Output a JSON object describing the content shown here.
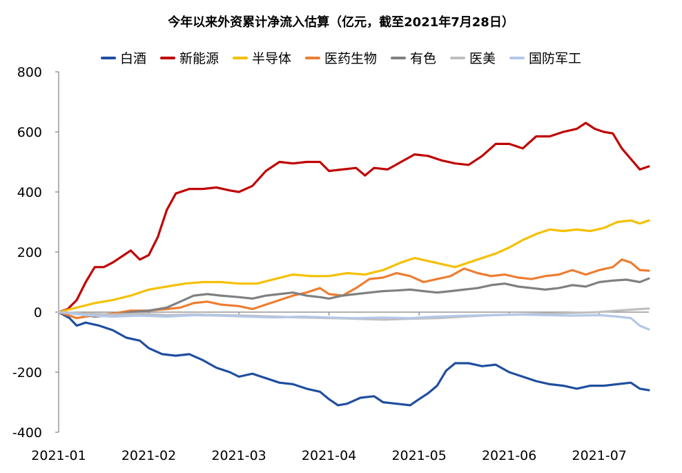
{
  "chart_data": {
    "type": "line",
    "title": "今年以来外资累计净流入估算（亿元，截至2021年7月28日）",
    "xlabel": "",
    "ylabel": "",
    "ylim": [
      -400,
      800
    ],
    "yticks": [
      800,
      600,
      400,
      200,
      0,
      -200,
      -400
    ],
    "x_ticks": [
      "2021-01",
      "2021-02",
      "2021-03",
      "2021-04",
      "2021-05",
      "2021-06",
      "2021-07"
    ],
    "x_range": [
      0,
      6.55
    ],
    "legend_position": "top-center",
    "grid": false,
    "series": [
      {
        "name": "白酒",
        "color": "#1f4e9f",
        "points": [
          [
            0,
            0
          ],
          [
            0.12,
            -20
          ],
          [
            0.2,
            -45
          ],
          [
            0.3,
            -35
          ],
          [
            0.45,
            -45
          ],
          [
            0.6,
            -60
          ],
          [
            0.75,
            -85
          ],
          [
            0.9,
            -95
          ],
          [
            1.0,
            -120
          ],
          [
            1.15,
            -140
          ],
          [
            1.3,
            -145
          ],
          [
            1.45,
            -140
          ],
          [
            1.6,
            -160
          ],
          [
            1.75,
            -185
          ],
          [
            1.9,
            -200
          ],
          [
            2.0,
            -215
          ],
          [
            2.15,
            -205
          ],
          [
            2.3,
            -220
          ],
          [
            2.45,
            -235
          ],
          [
            2.6,
            -240
          ],
          [
            2.75,
            -255
          ],
          [
            2.9,
            -265
          ],
          [
            3.0,
            -290
          ],
          [
            3.1,
            -310
          ],
          [
            3.2,
            -305
          ],
          [
            3.35,
            -285
          ],
          [
            3.5,
            -280
          ],
          [
            3.6,
            -300
          ],
          [
            3.75,
            -305
          ],
          [
            3.9,
            -310
          ],
          [
            4.0,
            -290
          ],
          [
            4.1,
            -270
          ],
          [
            4.2,
            -245
          ],
          [
            4.3,
            -195
          ],
          [
            4.4,
            -170
          ],
          [
            4.55,
            -170
          ],
          [
            4.7,
            -180
          ],
          [
            4.85,
            -175
          ],
          [
            5.0,
            -200
          ],
          [
            5.15,
            -215
          ],
          [
            5.3,
            -230
          ],
          [
            5.45,
            -240
          ],
          [
            5.6,
            -245
          ],
          [
            5.75,
            -255
          ],
          [
            5.9,
            -245
          ],
          [
            6.05,
            -245
          ],
          [
            6.2,
            -240
          ],
          [
            6.35,
            -235
          ],
          [
            6.45,
            -255
          ],
          [
            6.55,
            -260
          ]
        ]
      },
      {
        "name": "新能源",
        "color": "#c00000",
        "points": [
          [
            0,
            0
          ],
          [
            0.1,
            10
          ],
          [
            0.2,
            40
          ],
          [
            0.3,
            100
          ],
          [
            0.4,
            150
          ],
          [
            0.5,
            150
          ],
          [
            0.6,
            165
          ],
          [
            0.7,
            185
          ],
          [
            0.8,
            205
          ],
          [
            0.9,
            175
          ],
          [
            1.0,
            190
          ],
          [
            1.1,
            250
          ],
          [
            1.2,
            340
          ],
          [
            1.3,
            395
          ],
          [
            1.45,
            410
          ],
          [
            1.6,
            410
          ],
          [
            1.75,
            415
          ],
          [
            1.9,
            405
          ],
          [
            2.0,
            400
          ],
          [
            2.15,
            420
          ],
          [
            2.3,
            470
          ],
          [
            2.45,
            500
          ],
          [
            2.6,
            495
          ],
          [
            2.75,
            500
          ],
          [
            2.9,
            500
          ],
          [
            3.0,
            470
          ],
          [
            3.15,
            475
          ],
          [
            3.3,
            480
          ],
          [
            3.4,
            455
          ],
          [
            3.5,
            480
          ],
          [
            3.65,
            475
          ],
          [
            3.8,
            500
          ],
          [
            3.95,
            525
          ],
          [
            4.1,
            520
          ],
          [
            4.25,
            505
          ],
          [
            4.4,
            495
          ],
          [
            4.55,
            490
          ],
          [
            4.7,
            520
          ],
          [
            4.85,
            560
          ],
          [
            5.0,
            560
          ],
          [
            5.15,
            545
          ],
          [
            5.3,
            585
          ],
          [
            5.45,
            585
          ],
          [
            5.6,
            600
          ],
          [
            5.75,
            610
          ],
          [
            5.85,
            630
          ],
          [
            5.95,
            610
          ],
          [
            6.05,
            600
          ],
          [
            6.15,
            595
          ],
          [
            6.25,
            545
          ],
          [
            6.35,
            510
          ],
          [
            6.45,
            475
          ],
          [
            6.55,
            485
          ]
        ]
      },
      {
        "name": "半导体",
        "color": "#f5c000",
        "points": [
          [
            0,
            0
          ],
          [
            0.2,
            15
          ],
          [
            0.4,
            30
          ],
          [
            0.6,
            40
          ],
          [
            0.8,
            55
          ],
          [
            1.0,
            75
          ],
          [
            1.2,
            85
          ],
          [
            1.4,
            95
          ],
          [
            1.6,
            100
          ],
          [
            1.8,
            100
          ],
          [
            2.0,
            95
          ],
          [
            2.2,
            95
          ],
          [
            2.4,
            110
          ],
          [
            2.6,
            125
          ],
          [
            2.8,
            120
          ],
          [
            3.0,
            120
          ],
          [
            3.2,
            130
          ],
          [
            3.4,
            125
          ],
          [
            3.6,
            140
          ],
          [
            3.8,
            165
          ],
          [
            3.95,
            180
          ],
          [
            4.1,
            170
          ],
          [
            4.25,
            160
          ],
          [
            4.4,
            150
          ],
          [
            4.55,
            165
          ],
          [
            4.7,
            180
          ],
          [
            4.85,
            195
          ],
          [
            5.0,
            215
          ],
          [
            5.15,
            240
          ],
          [
            5.3,
            260
          ],
          [
            5.45,
            275
          ],
          [
            5.6,
            270
          ],
          [
            5.75,
            275
          ],
          [
            5.9,
            270
          ],
          [
            6.05,
            280
          ],
          [
            6.2,
            300
          ],
          [
            6.35,
            305
          ],
          [
            6.45,
            295
          ],
          [
            6.55,
            305
          ]
        ]
      },
      {
        "name": "医药生物",
        "color": "#ed7d31",
        "points": [
          [
            0,
            0
          ],
          [
            0.2,
            -20
          ],
          [
            0.4,
            -10
          ],
          [
            0.6,
            -5
          ],
          [
            0.8,
            5
          ],
          [
            1.0,
            5
          ],
          [
            1.2,
            10
          ],
          [
            1.35,
            15
          ],
          [
            1.5,
            30
          ],
          [
            1.65,
            35
          ],
          [
            1.8,
            25
          ],
          [
            2.0,
            20
          ],
          [
            2.15,
            10
          ],
          [
            2.3,
            25
          ],
          [
            2.45,
            40
          ],
          [
            2.6,
            55
          ],
          [
            2.75,
            65
          ],
          [
            2.9,
            80
          ],
          [
            3.0,
            60
          ],
          [
            3.15,
            55
          ],
          [
            3.3,
            80
          ],
          [
            3.45,
            110
          ],
          [
            3.6,
            115
          ],
          [
            3.75,
            130
          ],
          [
            3.9,
            120
          ],
          [
            4.05,
            100
          ],
          [
            4.2,
            110
          ],
          [
            4.35,
            120
          ],
          [
            4.5,
            145
          ],
          [
            4.65,
            130
          ],
          [
            4.8,
            120
          ],
          [
            4.95,
            125
          ],
          [
            5.1,
            115
          ],
          [
            5.25,
            110
          ],
          [
            5.4,
            120
          ],
          [
            5.55,
            125
          ],
          [
            5.7,
            140
          ],
          [
            5.85,
            125
          ],
          [
            6.0,
            140
          ],
          [
            6.15,
            150
          ],
          [
            6.25,
            175
          ],
          [
            6.35,
            165
          ],
          [
            6.45,
            140
          ],
          [
            6.55,
            138
          ]
        ]
      },
      {
        "name": "有色",
        "color": "#808080",
        "points": [
          [
            0,
            0
          ],
          [
            0.2,
            -5
          ],
          [
            0.4,
            -15
          ],
          [
            0.6,
            -10
          ],
          [
            0.8,
            0
          ],
          [
            1.0,
            5
          ],
          [
            1.2,
            15
          ],
          [
            1.35,
            35
          ],
          [
            1.5,
            55
          ],
          [
            1.65,
            60
          ],
          [
            1.8,
            55
          ],
          [
            2.0,
            50
          ],
          [
            2.15,
            45
          ],
          [
            2.3,
            55
          ],
          [
            2.45,
            60
          ],
          [
            2.6,
            65
          ],
          [
            2.75,
            55
          ],
          [
            2.9,
            50
          ],
          [
            3.0,
            45
          ],
          [
            3.15,
            55
          ],
          [
            3.3,
            60
          ],
          [
            3.45,
            65
          ],
          [
            3.6,
            70
          ],
          [
            3.75,
            72
          ],
          [
            3.9,
            75
          ],
          [
            4.05,
            70
          ],
          [
            4.2,
            65
          ],
          [
            4.35,
            70
          ],
          [
            4.5,
            75
          ],
          [
            4.65,
            80
          ],
          [
            4.8,
            90
          ],
          [
            4.95,
            95
          ],
          [
            5.1,
            85
          ],
          [
            5.25,
            80
          ],
          [
            5.4,
            75
          ],
          [
            5.55,
            80
          ],
          [
            5.7,
            90
          ],
          [
            5.85,
            85
          ],
          [
            6.0,
            100
          ],
          [
            6.15,
            105
          ],
          [
            6.3,
            108
          ],
          [
            6.45,
            100
          ],
          [
            6.55,
            112
          ]
        ]
      },
      {
        "name": "医美",
        "color": "#bfbfbf",
        "points": [
          [
            0,
            0
          ],
          [
            0.3,
            -5
          ],
          [
            0.6,
            -8
          ],
          [
            0.9,
            -5
          ],
          [
            1.2,
            -10
          ],
          [
            1.5,
            -8
          ],
          [
            1.8,
            -10
          ],
          [
            2.1,
            -12
          ],
          [
            2.4,
            -15
          ],
          [
            2.7,
            -18
          ],
          [
            3.0,
            -20
          ],
          [
            3.3,
            -22
          ],
          [
            3.6,
            -25
          ],
          [
            3.9,
            -22
          ],
          [
            4.2,
            -20
          ],
          [
            4.5,
            -15
          ],
          [
            4.8,
            -10
          ],
          [
            5.1,
            -8
          ],
          [
            5.4,
            -5
          ],
          [
            5.7,
            -3
          ],
          [
            6.0,
            0
          ],
          [
            6.2,
            5
          ],
          [
            6.35,
            8
          ],
          [
            6.45,
            10
          ],
          [
            6.55,
            12
          ]
        ]
      },
      {
        "name": "国防军工",
        "color": "#b4c7e7",
        "points": [
          [
            0,
            0
          ],
          [
            0.3,
            -10
          ],
          [
            0.6,
            -15
          ],
          [
            0.9,
            -12
          ],
          [
            1.2,
            -15
          ],
          [
            1.5,
            -10
          ],
          [
            1.8,
            -12
          ],
          [
            2.1,
            -15
          ],
          [
            2.4,
            -18
          ],
          [
            2.7,
            -15
          ],
          [
            3.0,
            -18
          ],
          [
            3.3,
            -20
          ],
          [
            3.6,
            -18
          ],
          [
            3.9,
            -20
          ],
          [
            4.2,
            -15
          ],
          [
            4.5,
            -12
          ],
          [
            4.8,
            -10
          ],
          [
            5.1,
            -8
          ],
          [
            5.4,
            -10
          ],
          [
            5.7,
            -12
          ],
          [
            6.0,
            -10
          ],
          [
            6.2,
            -15
          ],
          [
            6.35,
            -20
          ],
          [
            6.45,
            -45
          ],
          [
            6.55,
            -58
          ]
        ]
      }
    ]
  }
}
